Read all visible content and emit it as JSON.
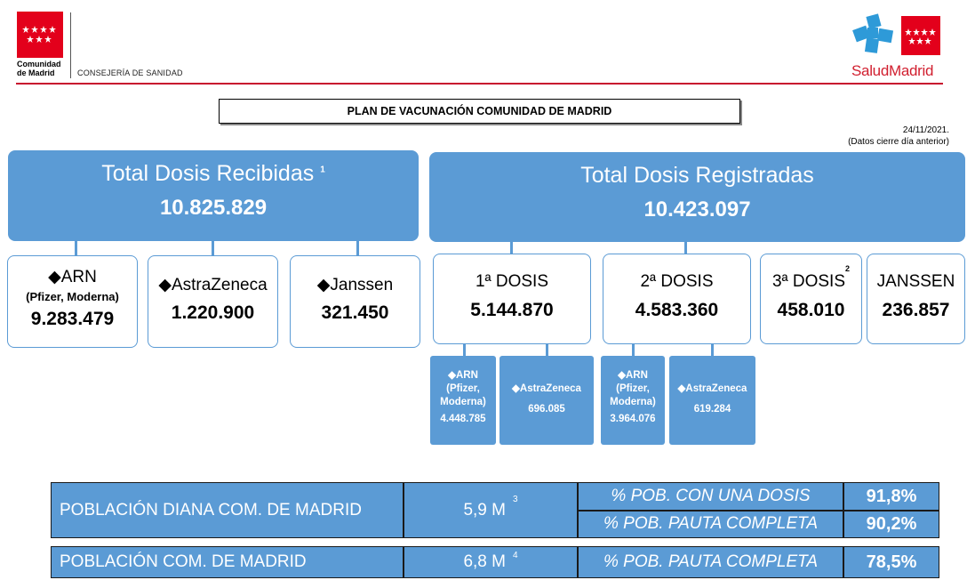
{
  "header": {
    "org_line1": "Comunidad",
    "org_line2": "de Madrid",
    "department": "CONSEJERÍA DE SANIDAD",
    "brand_salud": "Salud",
    "brand_madrid": "Madrid"
  },
  "title": "PLAN DE VACUNACIÓN COMUNIDAD DE MADRID",
  "date": "24/11/2021.",
  "date_note": "(Datos cierre día anterior)",
  "recibidas": {
    "label": "Total Dosis Recibidas",
    "note": "1",
    "value": "10.825.829",
    "items": [
      {
        "label": "◆ARN",
        "sublabel": "(Pfizer, Moderna)",
        "value": "9.283.479"
      },
      {
        "label": "◆AstraZeneca",
        "value": "1.220.900"
      },
      {
        "label": "◆Janssen",
        "value": "321.450"
      }
    ]
  },
  "registradas": {
    "label": "Total Dosis Registradas",
    "value": "10.423.097",
    "items": [
      {
        "label": "1ª DOSIS",
        "value": "5.144.870"
      },
      {
        "label": "2ª DOSIS",
        "value": "4.583.360"
      },
      {
        "label": "3ª DOSIS",
        "note": "2",
        "value": "458.010"
      },
      {
        "label": "JANSSEN",
        "value": "236.857"
      }
    ],
    "dose1_breakdown": [
      {
        "label_a": "◆ARN",
        "label_b": "(Pfizer,",
        "label_c": "Moderna)",
        "value": "4.448.785"
      },
      {
        "label_a": "◆AstraZeneca",
        "value": "696.085"
      }
    ],
    "dose2_breakdown": [
      {
        "label_a": "◆ARN",
        "label_b": "(Pfizer,",
        "label_c": "Moderna)",
        "value": "3.964.076"
      },
      {
        "label_a": "◆AstraZeneca",
        "value": "619.284"
      }
    ]
  },
  "table": {
    "row1": {
      "label": "POBLACIÓN DIANA COM. DE MADRID",
      "population": "5,9 M",
      "note": "3",
      "metric1_label": "% POB. CON UNA DOSIS",
      "metric1_value": "91,8%",
      "metric2_label": "% POB. PAUTA COMPLETA",
      "metric2_value": "90,2%"
    },
    "row2": {
      "label": "POBLACIÓN COM. DE MADRID",
      "population": "6,8 M",
      "note": "4",
      "metric_label": "% POB. PAUTA COMPLETA",
      "metric_value": "78,5%"
    }
  },
  "colors": {
    "blue": "#5b9bd5",
    "red": "#e3001b"
  }
}
